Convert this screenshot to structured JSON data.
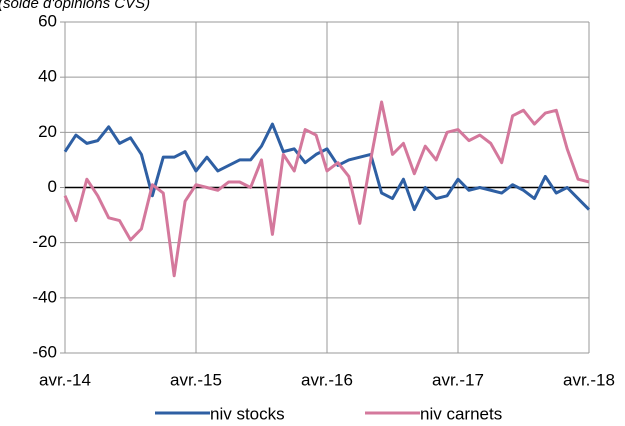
{
  "chart_data": {
    "type": "line",
    "title": "(solde d'opinions CVS)",
    "categories": [
      "avr.-14",
      null,
      null,
      null,
      null,
      null,
      null,
      null,
      null,
      null,
      null,
      null,
      "avr.-15",
      null,
      null,
      null,
      null,
      null,
      null,
      null,
      null,
      null,
      null,
      null,
      "avr.-16",
      null,
      null,
      null,
      null,
      null,
      null,
      null,
      null,
      null,
      null,
      null,
      "avr.-17",
      null,
      null,
      null,
      null,
      null,
      null,
      null,
      null,
      null,
      null,
      null,
      "avr.-18"
    ],
    "series": [
      {
        "name": "niv stocks",
        "color": "#2e5fa3",
        "values": [
          13,
          19,
          16,
          17,
          22,
          16,
          18,
          12,
          -3,
          11,
          11,
          13,
          6,
          11,
          6,
          8,
          10,
          10,
          15,
          23,
          13,
          14,
          9,
          12,
          14,
          8,
          10,
          11,
          12,
          -2,
          -4,
          3,
          -8,
          0,
          -4,
          -3,
          3,
          -1,
          0,
          -1,
          -2,
          1,
          -1,
          -4,
          4,
          -2,
          0,
          -4,
          -8
        ]
      },
      {
        "name": "niv carnets",
        "color": "#d4789c",
        "values": [
          -3,
          -12,
          3,
          -3,
          -11,
          -12,
          -19,
          -15,
          1,
          -2,
          -32,
          -5,
          1,
          0,
          -1,
          2,
          2,
          0,
          10,
          -17,
          12,
          6,
          21,
          19,
          6,
          9,
          4,
          -13,
          10,
          31,
          12,
          16,
          5,
          15,
          10,
          20,
          21,
          17,
          19,
          16,
          9,
          26,
          28,
          23,
          27,
          28,
          14,
          3,
          2
        ]
      }
    ],
    "ylim": [
      -60,
      60
    ],
    "yticks": [
      -60,
      -40,
      -20,
      0,
      20,
      40,
      60
    ],
    "grid": true,
    "legend": "bottom"
  }
}
